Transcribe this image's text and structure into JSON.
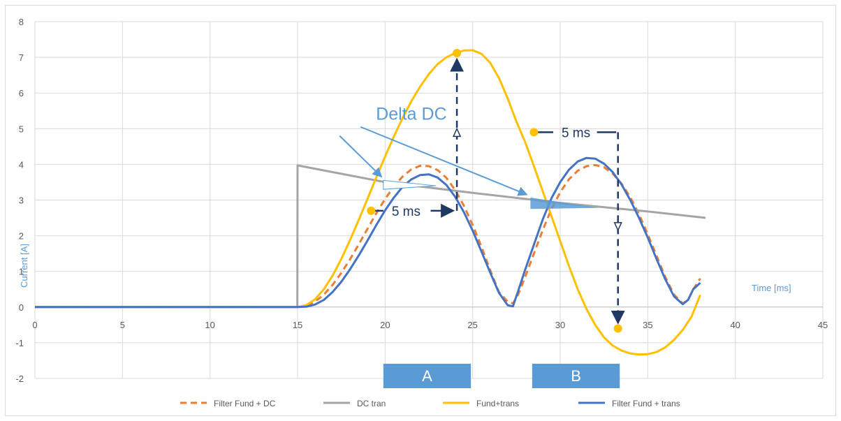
{
  "chart_data": {
    "type": "line",
    "xlabel": "Time [ms]",
    "ylabel": "Current [A]",
    "xlim": [
      0,
      45
    ],
    "ylim": [
      -2,
      8
    ],
    "x_ticks": [
      0,
      5,
      10,
      15,
      20,
      25,
      30,
      35,
      40,
      45
    ],
    "y_ticks": [
      -2,
      -1,
      0,
      1,
      2,
      3,
      4,
      5,
      6,
      7,
      8
    ],
    "grid": true,
    "legend_position": "bottom",
    "series": [
      {
        "name": "Filter Fund + DC",
        "color": "#ed7d31",
        "style": "dashed",
        "x": [
          0,
          5,
          10,
          15,
          15.5,
          16,
          16.5,
          17,
          17.5,
          18,
          18.5,
          19,
          19.5,
          20,
          20.5,
          21,
          21.5,
          22,
          22.5,
          23,
          23.5,
          24,
          24.5,
          25,
          25.5,
          26,
          26.5,
          27,
          27.3,
          27.6,
          28,
          28.5,
          29,
          29.5,
          30,
          30.5,
          31,
          31.5,
          32,
          32.5,
          33,
          33.5,
          34,
          34.5,
          35,
          35.5,
          36,
          36.5,
          37,
          37.3,
          37.6,
          38
        ],
        "values": [
          0,
          0,
          0,
          0,
          0.03,
          0.15,
          0.35,
          0.62,
          0.96,
          1.34,
          1.76,
          2.2,
          2.63,
          3.03,
          3.38,
          3.66,
          3.86,
          3.96,
          3.95,
          3.84,
          3.62,
          3.28,
          2.84,
          2.3,
          1.69,
          1.04,
          0.42,
          0.15,
          0.1,
          0.35,
          0.85,
          1.5,
          2.15,
          2.75,
          3.22,
          3.58,
          3.82,
          3.95,
          3.98,
          3.92,
          3.74,
          3.46,
          3.08,
          2.6,
          2.04,
          1.44,
          0.84,
          0.35,
          0.1,
          0.2,
          0.5,
          0.8
        ]
      },
      {
        "name": "DC tran",
        "color": "#a5a5a5",
        "style": "solid",
        "x": [
          0,
          5,
          10,
          14.99,
          15,
          20,
          25,
          30,
          35,
          38.3
        ],
        "values": [
          0,
          0,
          0,
          0,
          3.97,
          3.5,
          3.2,
          2.92,
          2.68,
          2.5
        ]
      },
      {
        "name": "Fund+trans",
        "color": "#ffc000",
        "style": "solid",
        "x": [
          0,
          5,
          10,
          15,
          15.5,
          16,
          16.5,
          17,
          17.5,
          18,
          18.5,
          19,
          19.5,
          20,
          20.5,
          21,
          21.5,
          22,
          22.5,
          23,
          23.5,
          24,
          24.5,
          25,
          25.5,
          26,
          26.5,
          27,
          27.5,
          28,
          28.5,
          29,
          29.5,
          30,
          30.5,
          31,
          31.5,
          32,
          32.5,
          33,
          33.5,
          34,
          34.5,
          35,
          35.5,
          36,
          36.5,
          37,
          37.5,
          38
        ],
        "values": [
          0,
          0,
          0,
          0,
          0.05,
          0.22,
          0.5,
          0.88,
          1.35,
          1.88,
          2.45,
          3.04,
          3.64,
          4.22,
          4.78,
          5.3,
          5.77,
          6.18,
          6.53,
          6.81,
          7.0,
          7.12,
          7.19,
          7.2,
          7.1,
          6.85,
          6.42,
          5.85,
          5.2,
          4.62,
          3.95,
          3.25,
          2.55,
          1.85,
          1.15,
          0.5,
          -0.05,
          -0.5,
          -0.85,
          -1.08,
          -1.22,
          -1.3,
          -1.33,
          -1.32,
          -1.26,
          -1.13,
          -0.92,
          -0.64,
          -0.27,
          0.34
        ]
      },
      {
        "name": "Filter Fund + trans",
        "color": "#4472c4",
        "style": "solid",
        "x": [
          0,
          5,
          10,
          15,
          15.5,
          16,
          16.5,
          17,
          17.5,
          18,
          18.5,
          19,
          19.5,
          20,
          20.5,
          21,
          21.5,
          22,
          22.5,
          23,
          23.5,
          24,
          24.5,
          25,
          25.5,
          26,
          26.5,
          27,
          27.3,
          27.6,
          28,
          28.5,
          29,
          29.5,
          30,
          30.5,
          31,
          31.5,
          32,
          32.5,
          33,
          33.5,
          34,
          34.5,
          35,
          35.5,
          36,
          36.5,
          37,
          37.3,
          37.6,
          38
        ],
        "values": [
          0,
          0,
          0,
          0,
          0.01,
          0.07,
          0.2,
          0.42,
          0.71,
          1.06,
          1.45,
          1.87,
          2.3,
          2.71,
          3.07,
          3.37,
          3.58,
          3.7,
          3.72,
          3.63,
          3.42,
          3.09,
          2.66,
          2.14,
          1.56,
          0.97,
          0.4,
          0.05,
          0.02,
          0.45,
          1.05,
          1.75,
          2.45,
          3.05,
          3.5,
          3.85,
          4.08,
          4.18,
          4.16,
          4.02,
          3.78,
          3.44,
          3.0,
          2.5,
          1.95,
          1.35,
          0.78,
          0.3,
          0.08,
          0.2,
          0.5,
          0.68
        ]
      }
    ],
    "markers": [
      {
        "x": 19.2,
        "y": 2.7
      },
      {
        "x": 24.1,
        "y": 7.12
      },
      {
        "x": 28.5,
        "y": 4.9
      },
      {
        "x": 33.3,
        "y": -0.6
      }
    ],
    "annotations": {
      "delta_label": "Delta DC",
      "ms_label_1": "5 ms",
      "ms_label_2": "5 ms",
      "box_a": "A",
      "box_b": "B"
    }
  }
}
